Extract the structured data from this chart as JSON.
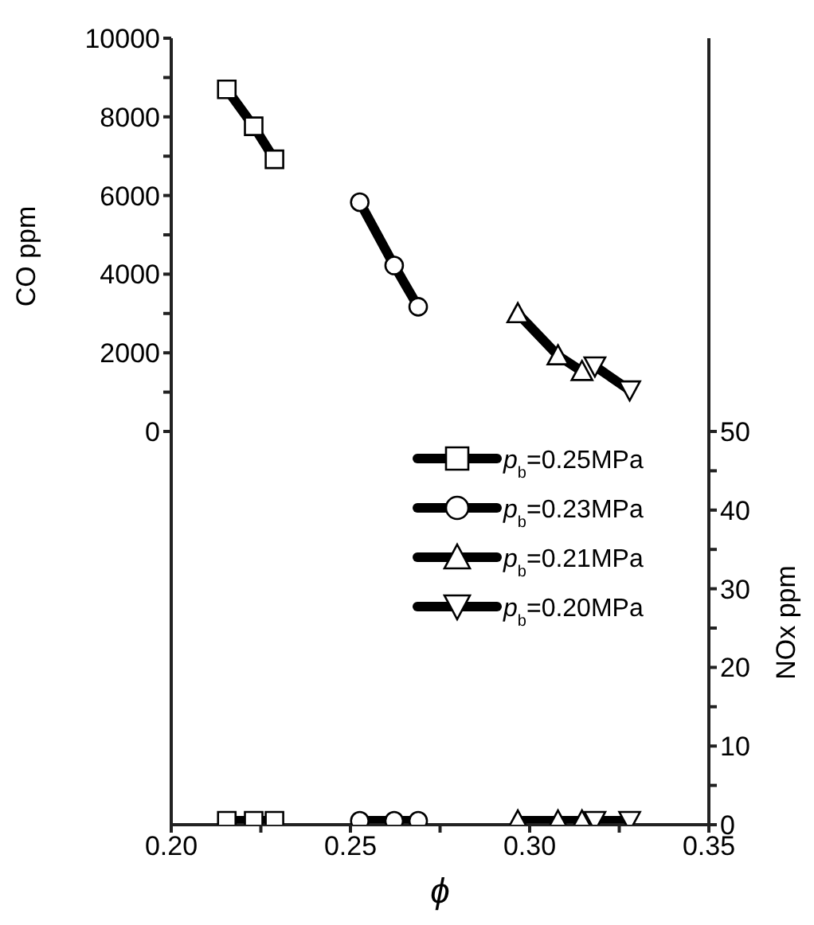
{
  "chart_data": {
    "type": "line",
    "xlabel": "ϕ",
    "ylabel": "CO ppm",
    "y2label": "NOx ppm",
    "xlim": [
      0.2,
      0.35
    ],
    "xticks": [
      {
        "value": 0.2,
        "label": "0.20"
      },
      {
        "value": 0.225,
        "label": null
      },
      0.25,
      {
        "value": 0.275,
        "label": null
      },
      {
        "value": 0.3,
        "label": "0.30"
      },
      {
        "value": 0.325,
        "label": null
      },
      0.35
    ],
    "ylim": [
      -10000,
      10000
    ],
    "yticks": [
      0,
      {
        "value": 1000,
        "label": null
      },
      2000,
      {
        "value": 3000,
        "label": null
      },
      4000,
      {
        "value": 5000,
        "label": null
      },
      6000,
      {
        "value": 7000,
        "label": null
      },
      8000,
      {
        "value": 9000,
        "label": null
      },
      10000
    ],
    "y2lim": [
      0,
      100
    ],
    "y2ticks": [
      0,
      {
        "value": 5,
        "label": null
      },
      10,
      {
        "value": 15,
        "label": null
      },
      20,
      {
        "value": 25,
        "label": null
      },
      30,
      {
        "value": 35,
        "label": null
      },
      40,
      {
        "value": 45,
        "label": null
      },
      50
    ],
    "legend": "right",
    "grid": false,
    "line_style": "solid",
    "series": [
      {
        "name": "p$_{b}$=0.25MPa",
        "color": "#000000",
        "marker": "square",
        "x": [
          0.2155,
          0.223,
          0.2288
        ],
        "values": [
          8700,
          7760,
          6920
        ]
      },
      {
        "name": "p$_{b}$=0.23MPa",
        "color": "#000000",
        "marker": "circle",
        "x": [
          0.2526,
          0.2622,
          0.2689
        ],
        "values": [
          5830,
          4220,
          3170
        ]
      },
      {
        "name": "p$_{b}$=0.21MPa",
        "color": "#000000",
        "marker": "triangle",
        "x": [
          0.2967,
          0.3079,
          0.3146
        ],
        "values": [
          3000,
          1930,
          1530
        ]
      },
      {
        "name": "p$_{b}$=0.20MPa",
        "color": "#000000",
        "marker": "triangle-down",
        "x": [
          0.3182,
          0.3279
        ],
        "values": [
          1660,
          1050
        ]
      },
      {
        "color": "#000000",
        "marker": "square",
        "axis": "y2",
        "x": [
          0.2155,
          0.223,
          0.2288
        ],
        "values": [
          0.5,
          0.5,
          0.5
        ]
      },
      {
        "color": "#000000",
        "marker": "circle",
        "axis": "y2",
        "x": [
          0.2526,
          0.2622,
          0.2689
        ],
        "values": [
          0.5,
          0.5,
          0.5
        ]
      },
      {
        "color": "#000000",
        "marker": "triangle",
        "axis": "y2",
        "x": [
          0.2967,
          0.3079,
          0.3146
        ],
        "values": [
          0.5,
          0.5,
          0.5
        ]
      },
      {
        "color": "#000000",
        "marker": "triangle-down",
        "axis": "y2",
        "x": [
          0.3182,
          0.3279
        ],
        "values": [
          0.5,
          0.5
        ]
      }
    ]
  }
}
